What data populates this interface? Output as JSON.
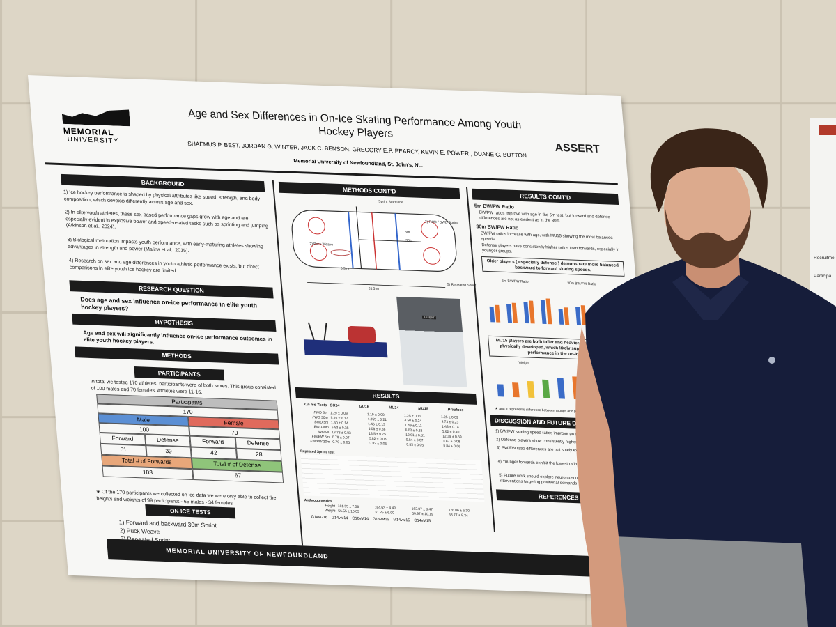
{
  "poster": {
    "logo_line1": "MEMORIAL",
    "logo_line2": "UNIVERSITY",
    "title": "Age and Sex Differences in On-Ice Skating Performance Among Youth Hockey Players",
    "authors": "SHAEMUS P. BEST, JORDAN G. WINTER, JACK C. BENSON, GREGORY E.P. PEARCY, KEVIN E. POWER , DUANE C. BUTTON",
    "affiliation": "Memorial University of Newfoundland, St. John's, NL.",
    "partner_logo": "ASSERT",
    "background": {
      "heading": "BACKGROUND",
      "items": [
        "1) Ice hockey performance is shaped by physical attributes like speed, strength, and body composition, which develop differently across age and sex.",
        "2) In elite youth athletes, these sex-based performance gaps grow with age and are especially evident in explosive power and speed-related tasks such as sprinting and jumping (Atkinson et al., 2024).",
        "3) Biological maturation impacts youth performance, with early-maturing athletes showing advantages in strength and power (Malina et al., 2015).",
        "4) Research on sex and age differences in youth athletic performance exists, but direct comparisons in elite youth ice hockey are limited."
      ]
    },
    "research_question": {
      "heading": "RESEARCH QUESTION",
      "text": "Does age and sex  influence on-ice performance in elite youth hockey players?"
    },
    "hypothesis": {
      "heading": "HYPOTHESIS",
      "text": "Age and sex will significantly influence on-ice performance outcomes in elite youth hockey players."
    },
    "methods": {
      "heading": "METHODS",
      "participants_heading": "PARTICIPANTS",
      "text": "In total we tested 170 athletes, participants were of both sexes. This group consisted of 100 males and 70 females. Athletes were 11-16.",
      "table": {
        "header": "Participants",
        "total": "170",
        "male": "Male",
        "male_n": "100",
        "female": "Female",
        "female_n": "70",
        "groups": [
          "Forward",
          "Defense",
          "Forward",
          "Defense"
        ],
        "group_n": [
          "61",
          "39",
          "42",
          "28"
        ],
        "total_forwards": "Total # of Forwards",
        "total_forwards_n": "103",
        "total_defense": "Total # of Defense",
        "total_defense_n": "67"
      },
      "note": "★ Of the 170 participants we collected on ice data we were only able to collect the heights and weights of 99 participants - 65 males - 34 females"
    },
    "on_ice_tests": {
      "heading": "ON ICE TESTS",
      "items": [
        "1) Forward and backward 30m Sprint",
        "2) Puck Weave",
        "3) Repeated Sprint"
      ]
    },
    "methods_contd": {
      "heading": "METHODS CONT'D",
      "diagram_labels": [
        "Sprint Start Line",
        "1) FWD / BWD Sprint",
        "5m",
        "30m",
        "2) Puck Weave",
        "3.3 m",
        "3) Repeated Sprint",
        "26.5 m"
      ],
      "photo_sign": "ASSERT"
    },
    "results": {
      "heading": "RESULTS",
      "columns": [
        "On Ice Tests",
        "GU14",
        "GU16",
        "MU14",
        "MU15",
        "P-Values"
      ],
      "rows": [
        [
          "FWD 5m",
          "1.29 ± 0.09",
          "1.19 ± 0.09",
          "1.25 ± 0.11",
          "1.25 ± 0.09"
        ],
        [
          "FWD 30m",
          "5.16 ± 0.17",
          "4.955 ± 0.21",
          "4.50 ± 0.24",
          "4.73 ± 0.23"
        ],
        [
          "BWD 5m",
          "1.60 ± 0.14",
          "1.46 ± 0.13",
          "1.49 ± 0.11",
          "1.45 ± 0.14"
        ],
        [
          "BWD30m",
          "6.53 ± 0.38",
          "6.06 ± 0.38",
          "6.02 ± 0.38",
          "5.62 ± 0.40"
        ],
        [
          "Weave",
          "13.78 ± 0.83",
          "13.5 ± 0.75",
          "12.91 ± 0.81",
          "12.39 ± 0.69"
        ],
        [
          "FW/BW 5m",
          "0.79 ± 0.07",
          "0.82 ± 0.08",
          "0.84 ± 0.07",
          "0.87 ± 0.08"
        ],
        [
          "FW/BW 30m",
          "0.79 ± 0.05",
          "0.82 ± 0.05",
          "0.83 ± 0.05",
          "0.84 ± 0.06"
        ]
      ],
      "repeated_heading": "Repeated Sprint Test",
      "anthro_heading": "Anthropometrics",
      "anthro_rows": [
        [
          "Height",
          "161.55 ± 7.38",
          "164.63 ± 4.43",
          "163.87 ± 8.47",
          "176.06 ± 5.30"
        ],
        [
          "Weight",
          "56.55 ± 10.05",
          "61.25 ± 6.90",
          "50.97 ± 10.19",
          "63.77 ± 8.34"
        ]
      ],
      "legend": [
        "G14vG16",
        "G14vM14",
        "G16vM14",
        "G16vM15",
        "M14vM15",
        "G14vM15"
      ]
    },
    "results_contd": {
      "heading": "RESULTS CONT'D",
      "sub1": "5m BW/FW Ratio",
      "text1": "BW/FW ratios improve with age in the 5m test, but forward and defense differences are not as evident as in the 30m.",
      "sub2": "30m BW/FW Ratio",
      "text2": "BW/FW ratios increase with age, with MU15 showing the most balanced speeds.",
      "text3": "Defense players have consistently higher ratios than forwards, especially in younger groups.",
      "callout1": "Older players ( especially defense ) demonstrate more balanced backward to forward skating speeds.",
      "chart1_title": "5m BW/FW Ratio",
      "chart2_title": "30m BW/FW Ratio",
      "callout2": "MU15 players are both taller and heavier, suggesting they are physically developed, which likely supports their superior performance in the on-ice tests",
      "chart3_title": "Weight",
      "note": "★ and # represents difference between groups and positions with"
    },
    "discussion": {
      "heading": "DISCUSSION AND FUTURE DIREC",
      "items": [
        "1) BW/FW skating speed ratios improve progressively with a",
        "2) Defense players show consistently higher BW/FW ratios th",
        "3) BW/FW ratio differences are not solely explained development.",
        "4) Younger forwards exhibit the lowest ratios, indicating performance gap.",
        "5) Future work should explore neuromuscular contributors to assess training interventions targeting positional demands"
      ]
    },
    "references": {
      "heading": "REFERENCES"
    },
    "footer": "MEMORIAL UNIVERSITY OF NEWFOUNDLAND",
    "side_poster": [
      "Recruitme",
      "Participa"
    ]
  }
}
